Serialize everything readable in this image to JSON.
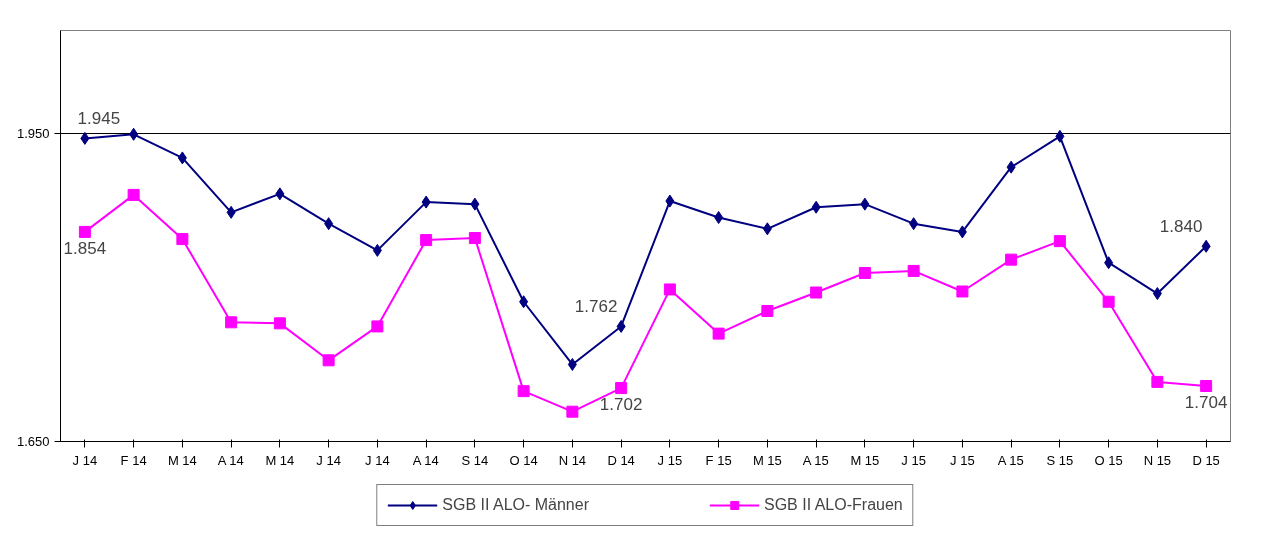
{
  "chart_data": {
    "type": "line",
    "categories": [
      "J 14",
      "F 14",
      "M 14",
      "A 14",
      "M 14",
      "J 14",
      "J 14",
      "A 14",
      "S 14",
      "O 14",
      "N 14",
      "D 14",
      "J 15",
      "F 15",
      "M 15",
      "A 15",
      "M 15",
      "J 15",
      "J 15",
      "A 15",
      "S 15",
      "O 15",
      "N 15",
      "D 15"
    ],
    "series": [
      {
        "name": "SGB II ALO- Männer",
        "color": "#000080",
        "marker": "diamond",
        "values": [
          1945,
          1949,
          1926,
          1873,
          1891,
          1862,
          1836,
          1883,
          1881,
          1786,
          1725,
          1762,
          1884,
          1868,
          1857,
          1878,
          1881,
          1862,
          1854,
          1917,
          1947,
          1824,
          1794,
          1840
        ],
        "value_labels": [
          "1.945",
          null,
          null,
          null,
          null,
          null,
          null,
          null,
          null,
          null,
          null,
          "1.762",
          null,
          null,
          null,
          null,
          null,
          null,
          null,
          null,
          null,
          null,
          null,
          "1.840"
        ]
      },
      {
        "name": "SGB II ALO-Frauen",
        "color": "#ff00ff",
        "marker": "square",
        "values": [
          1854,
          1890,
          1847,
          1766,
          1765,
          1729,
          1762,
          1846,
          1848,
          1699,
          1679,
          1702,
          1798,
          1755,
          1777,
          1795,
          1814,
          1816,
          1796,
          1827,
          1845,
          1786,
          1708,
          1704
        ],
        "value_labels": [
          "1.854",
          null,
          null,
          null,
          null,
          null,
          null,
          null,
          null,
          null,
          null,
          "1.702",
          null,
          null,
          null,
          null,
          null,
          null,
          null,
          null,
          null,
          null,
          null,
          "1.704"
        ]
      }
    ],
    "ylim": [
      1650,
      2050
    ],
    "yticks": [
      {
        "value": 1650,
        "label": "1.650"
      },
      {
        "value": 1950,
        "label": "1.950"
      }
    ],
    "grid": "y",
    "legend": "bottom"
  }
}
